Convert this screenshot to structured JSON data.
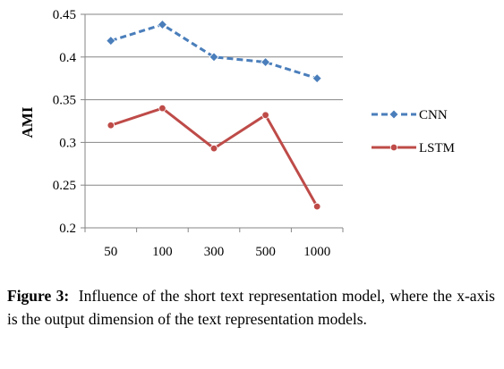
{
  "chart_data": {
    "type": "line",
    "title": "",
    "xlabel": "",
    "ylabel": "AMI",
    "categories": [
      "50",
      "100",
      "300",
      "500",
      "1000"
    ],
    "ylim": [
      0.2,
      0.45
    ],
    "yticks": [
      "0.2",
      "0.25",
      "0.3",
      "0.35",
      "0.4",
      "0.45"
    ],
    "grid": "horizontal",
    "legend_position": "right",
    "series": [
      {
        "name": "CNN",
        "values": [
          0.419,
          0.438,
          0.4,
          0.394,
          0.375
        ],
        "color": "#4a7ebb",
        "style": "dashed",
        "marker": "diamond"
      },
      {
        "name": "LSTM",
        "values": [
          0.32,
          0.34,
          0.293,
          0.332,
          0.225
        ],
        "color": "#be4b48",
        "style": "solid",
        "marker": "circle"
      }
    ]
  },
  "caption": {
    "lead": "Figure 3:",
    "text": "Influence of the short text representation model, where the x-axis is the output dimension of the text representation models."
  }
}
